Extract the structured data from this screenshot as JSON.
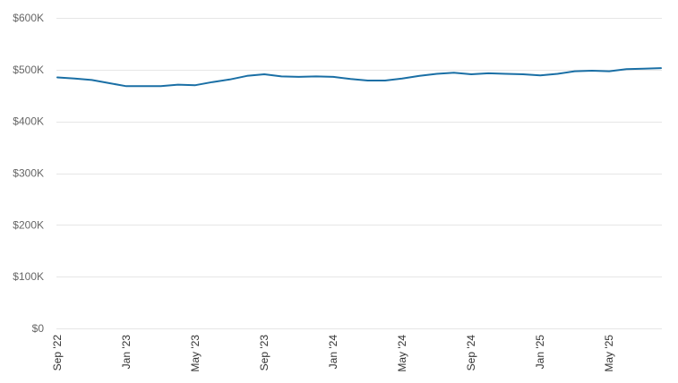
{
  "chart_data": {
    "type": "line",
    "title": "",
    "xlabel": "",
    "ylabel": "",
    "ylim": [
      0,
      600000
    ],
    "grid": true,
    "legend": "none",
    "y_ticks": [
      {
        "value": 0,
        "label": "$0"
      },
      {
        "value": 100000,
        "label": "$100K"
      },
      {
        "value": 200000,
        "label": "$200K"
      },
      {
        "value": 300000,
        "label": "$300K"
      },
      {
        "value": 400000,
        "label": "$400K"
      },
      {
        "value": 500000,
        "label": "$500K"
      },
      {
        "value": 600000,
        "label": "$600K"
      }
    ],
    "x_ticks": [
      {
        "value": "2022-09",
        "label": "Sep '22"
      },
      {
        "value": "2023-01",
        "label": "Jan '23"
      },
      {
        "value": "2023-05",
        "label": "May '23"
      },
      {
        "value": "2023-09",
        "label": "Sep '23"
      },
      {
        "value": "2024-01",
        "label": "Jan '24"
      },
      {
        "value": "2024-05",
        "label": "May '24"
      },
      {
        "value": "2024-09",
        "label": "Sep '24"
      },
      {
        "value": "2025-01",
        "label": "Jan '25"
      },
      {
        "value": "2025-05",
        "label": "May '25"
      }
    ],
    "x": [
      "2022-09",
      "2022-10",
      "2022-11",
      "2022-12",
      "2023-01",
      "2023-02",
      "2023-03",
      "2023-04",
      "2023-05",
      "2023-06",
      "2023-07",
      "2023-08",
      "2023-09",
      "2023-10",
      "2023-11",
      "2023-12",
      "2024-01",
      "2024-02",
      "2024-03",
      "2024-04",
      "2024-05",
      "2024-06",
      "2024-07",
      "2024-08",
      "2024-09",
      "2024-10",
      "2024-11",
      "2024-12",
      "2025-01",
      "2025-02",
      "2025-03",
      "2025-04",
      "2025-05",
      "2025-06",
      "2025-07",
      "2025-08"
    ],
    "series": [
      {
        "color": "#1a6fa5",
        "values": [
          485000,
          483000,
          480000,
          474000,
          468000,
          468000,
          468000,
          471000,
          470000,
          476000,
          481000,
          488000,
          491000,
          487000,
          486000,
          487000,
          486000,
          482000,
          479000,
          479000,
          483000,
          488000,
          492000,
          494000,
          491000,
          493000,
          492000,
          491000,
          489000,
          492000,
          497000,
          498000,
          497000,
          501000,
          502000,
          503000
        ]
      }
    ]
  }
}
